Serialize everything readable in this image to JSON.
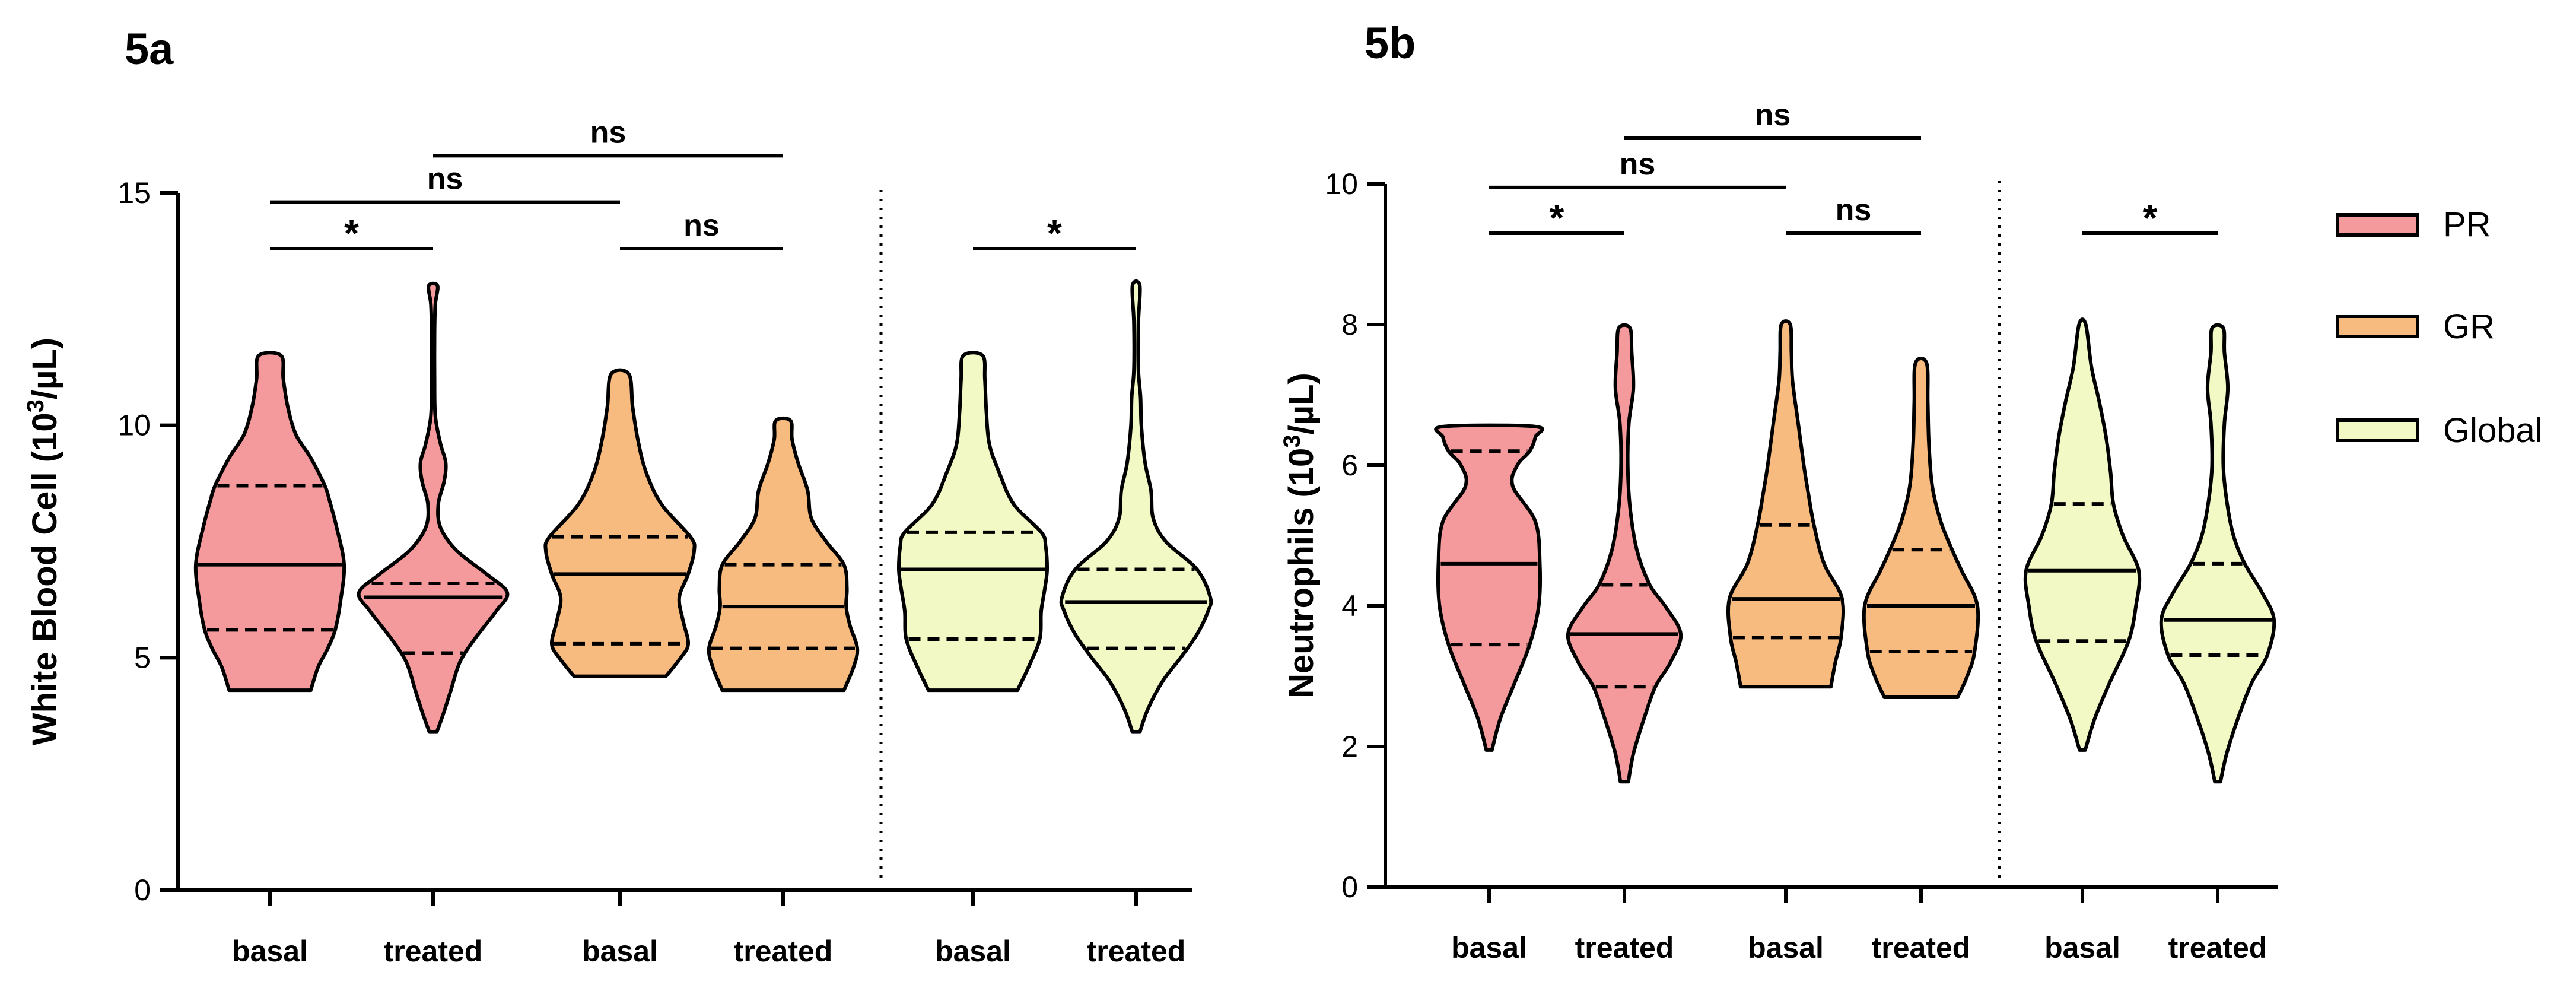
{
  "colors": {
    "PR": "#F59A9C",
    "GR": "#F8BB7F",
    "Global": "#F2F9C4",
    "ink": "#000000"
  },
  "legend": [
    {
      "label": "PR",
      "color": "#F59A9C"
    },
    {
      "label": "GR",
      "color": "#F8BB7F"
    },
    {
      "label": "Global",
      "color": "#F2F9C4"
    }
  ],
  "chart_data": [
    {
      "type": "violin",
      "panel_label": "5a",
      "title": "",
      "ylabel": "White Blood Cell  (10³/µL)",
      "ylabel_parts": {
        "main": "White Blood Cell  (10",
        "sup": "3",
        "tail": "/µL)"
      },
      "ylim": [
        0,
        15
      ],
      "yticks": [
        "0",
        "5",
        "10",
        "15"
      ],
      "ytick_values": [
        0,
        5,
        10,
        15
      ],
      "separator_after_group": 4,
      "violins": [
        {
          "name": "PR basal",
          "category": "basal",
          "group": "PR",
          "min": 4.3,
          "max": 11.5,
          "median": 7.0,
          "q1": 5.6,
          "q3": 8.7,
          "profile": [
            [
              4.3,
              0.55
            ],
            [
              4.8,
              0.65
            ],
            [
              5.2,
              0.78
            ],
            [
              5.6,
              0.88
            ],
            [
              6.2,
              0.95
            ],
            [
              7.0,
              1.0
            ],
            [
              7.8,
              0.9
            ],
            [
              8.4,
              0.8
            ],
            [
              8.7,
              0.74
            ],
            [
              9.3,
              0.55
            ],
            [
              9.8,
              0.35
            ],
            [
              10.4,
              0.24
            ],
            [
              11.0,
              0.18
            ],
            [
              11.5,
              0.15
            ]
          ]
        },
        {
          "name": "PR treated",
          "category": "treated",
          "group": "PR",
          "min": 3.4,
          "max": 13.0,
          "median": 6.3,
          "q1": 5.1,
          "q3": 6.6,
          "profile": [
            [
              3.4,
              0.05
            ],
            [
              3.8,
              0.14
            ],
            [
              4.3,
              0.24
            ],
            [
              4.9,
              0.36
            ],
            [
              5.4,
              0.56
            ],
            [
              6.0,
              0.85
            ],
            [
              6.4,
              1.0
            ],
            [
              6.8,
              0.72
            ],
            [
              7.3,
              0.32
            ],
            [
              7.8,
              0.1
            ],
            [
              8.3,
              0.07
            ],
            [
              8.8,
              0.15
            ],
            [
              9.2,
              0.17
            ],
            [
              9.6,
              0.1
            ],
            [
              10.2,
              0.03
            ],
            [
              11.0,
              0.02
            ],
            [
              12.0,
              0.02
            ],
            [
              12.6,
              0.03
            ],
            [
              13.0,
              0.06
            ]
          ]
        },
        {
          "name": "GR basal",
          "category": "basal",
          "group": "GR",
          "min": 4.6,
          "max": 11.1,
          "median": 6.8,
          "q1": 5.3,
          "q3": 7.6,
          "profile": [
            [
              4.6,
              0.62
            ],
            [
              5.0,
              0.82
            ],
            [
              5.3,
              0.92
            ],
            [
              5.8,
              0.85
            ],
            [
              6.3,
              0.8
            ],
            [
              6.8,
              0.92
            ],
            [
              7.3,
              1.0
            ],
            [
              7.6,
              0.95
            ],
            [
              8.3,
              0.56
            ],
            [
              9.0,
              0.35
            ],
            [
              9.7,
              0.24
            ],
            [
              10.4,
              0.17
            ],
            [
              11.1,
              0.12
            ]
          ]
        },
        {
          "name": "GR treated",
          "category": "treated",
          "group": "GR",
          "min": 4.3,
          "max": 10.1,
          "median": 6.1,
          "q1": 5.2,
          "q3": 7.0,
          "profile": [
            [
              4.3,
              0.82
            ],
            [
              4.8,
              0.95
            ],
            [
              5.2,
              1.0
            ],
            [
              5.7,
              0.9
            ],
            [
              6.1,
              0.85
            ],
            [
              6.5,
              0.86
            ],
            [
              7.0,
              0.82
            ],
            [
              7.5,
              0.58
            ],
            [
              8.0,
              0.38
            ],
            [
              8.6,
              0.33
            ],
            [
              9.2,
              0.2
            ],
            [
              9.7,
              0.12
            ],
            [
              10.1,
              0.1
            ]
          ]
        },
        {
          "name": "Global basal",
          "category": "basal",
          "group": "Global",
          "min": 4.3,
          "max": 11.5,
          "median": 6.9,
          "q1": 5.4,
          "q3": 7.7,
          "profile": [
            [
              4.3,
              0.6
            ],
            [
              4.8,
              0.75
            ],
            [
              5.4,
              0.9
            ],
            [
              6.0,
              0.92
            ],
            [
              6.5,
              0.97
            ],
            [
              6.9,
              1.0
            ],
            [
              7.4,
              0.98
            ],
            [
              7.7,
              0.92
            ],
            [
              8.3,
              0.55
            ],
            [
              9.0,
              0.35
            ],
            [
              9.6,
              0.22
            ],
            [
              10.3,
              0.18
            ],
            [
              11.0,
              0.16
            ],
            [
              11.5,
              0.13
            ]
          ]
        },
        {
          "name": "Global treated",
          "category": "treated",
          "group": "Global",
          "min": 3.4,
          "max": 13.0,
          "median": 6.2,
          "q1": 5.2,
          "q3": 6.9,
          "profile": [
            [
              3.4,
              0.05
            ],
            [
              3.9,
              0.16
            ],
            [
              4.5,
              0.36
            ],
            [
              5.0,
              0.6
            ],
            [
              5.5,
              0.82
            ],
            [
              6.0,
              0.97
            ],
            [
              6.3,
              1.0
            ],
            [
              6.9,
              0.82
            ],
            [
              7.5,
              0.4
            ],
            [
              8.0,
              0.23
            ],
            [
              8.6,
              0.2
            ],
            [
              9.2,
              0.12
            ],
            [
              10.0,
              0.07
            ],
            [
              10.6,
              0.06
            ],
            [
              11.2,
              0.03
            ],
            [
              12.2,
              0.03
            ],
            [
              13.0,
              0.05
            ]
          ]
        }
      ],
      "brackets": [
        {
          "from": 0,
          "to": 1,
          "label": "*",
          "level": 13.8
        },
        {
          "from": 0,
          "to": 2,
          "label": "ns",
          "level": 14.8
        },
        {
          "from": 2,
          "to": 3,
          "label": "ns",
          "level": 13.8
        },
        {
          "from": 1,
          "to": 3,
          "label": "ns",
          "level": 15.8
        },
        {
          "from": 4,
          "to": 5,
          "label": "*",
          "level": 13.8
        }
      ]
    },
    {
      "type": "violin",
      "panel_label": "5b",
      "title": "",
      "ylabel": "Neutrophils (10³/µL)",
      "ylabel_parts": {
        "main": "Neutrophils (10",
        "sup": "3",
        "tail": "/µL)"
      },
      "ylim": [
        0,
        10
      ],
      "yticks": [
        "0",
        "2",
        "4",
        "6",
        "8",
        "10"
      ],
      "ytick_values": [
        0,
        2,
        4,
        6,
        8,
        10
      ],
      "separator_after_group": 4,
      "violins": [
        {
          "name": "PR basal",
          "category": "basal",
          "group": "PR",
          "min": 1.95,
          "max": 6.55,
          "median": 4.6,
          "q1": 3.45,
          "q3": 6.2,
          "profile": [
            [
              1.95,
              0.05
            ],
            [
              2.4,
              0.2
            ],
            [
              2.9,
              0.45
            ],
            [
              3.45,
              0.72
            ],
            [
              4.0,
              0.88
            ],
            [
              4.6,
              0.9
            ],
            [
              5.2,
              0.82
            ],
            [
              5.7,
              0.42
            ],
            [
              6.0,
              0.5
            ],
            [
              6.2,
              0.72
            ],
            [
              6.4,
              0.82
            ],
            [
              6.55,
              0.82
            ]
          ]
        },
        {
          "name": "PR treated",
          "category": "treated",
          "group": "PR",
          "min": 1.5,
          "max": 7.95,
          "median": 3.6,
          "q1": 2.85,
          "q3": 4.3,
          "profile": [
            [
              1.5,
              0.07
            ],
            [
              1.9,
              0.16
            ],
            [
              2.4,
              0.35
            ],
            [
              2.85,
              0.55
            ],
            [
              3.2,
              0.82
            ],
            [
              3.6,
              1.0
            ],
            [
              4.0,
              0.72
            ],
            [
              4.3,
              0.45
            ],
            [
              4.8,
              0.22
            ],
            [
              5.4,
              0.1
            ],
            [
              6.0,
              0.06
            ],
            [
              6.6,
              0.08
            ],
            [
              7.1,
              0.16
            ],
            [
              7.6,
              0.13
            ],
            [
              7.95,
              0.1
            ]
          ]
        },
        {
          "name": "GR basal",
          "category": "basal",
          "group": "GR",
          "min": 2.85,
          "max": 8.0,
          "median": 4.1,
          "q1": 3.55,
          "q3": 5.15,
          "profile": [
            [
              2.85,
              0.8
            ],
            [
              3.2,
              0.88
            ],
            [
              3.55,
              0.98
            ],
            [
              4.1,
              1.0
            ],
            [
              4.6,
              0.68
            ],
            [
              5.15,
              0.5
            ],
            [
              5.6,
              0.4
            ],
            [
              6.0,
              0.32
            ],
            [
              6.6,
              0.22
            ],
            [
              7.2,
              0.12
            ],
            [
              7.6,
              0.1
            ],
            [
              8.0,
              0.08
            ]
          ]
        },
        {
          "name": "GR treated",
          "category": "treated",
          "group": "GR",
          "min": 2.7,
          "max": 7.45,
          "median": 4.0,
          "q1": 3.35,
          "q3": 4.8,
          "profile": [
            [
              2.7,
              0.65
            ],
            [
              3.0,
              0.82
            ],
            [
              3.35,
              0.95
            ],
            [
              4.0,
              1.0
            ],
            [
              4.5,
              0.72
            ],
            [
              4.8,
              0.55
            ],
            [
              5.2,
              0.35
            ],
            [
              5.7,
              0.2
            ],
            [
              6.3,
              0.14
            ],
            [
              6.9,
              0.12
            ],
            [
              7.45,
              0.1
            ]
          ]
        },
        {
          "name": "Global basal",
          "category": "basal",
          "group": "Global",
          "min": 1.95,
          "max": 8.0,
          "median": 4.5,
          "q1": 3.5,
          "q3": 5.45,
          "profile": [
            [
              1.95,
              0.05
            ],
            [
              2.4,
              0.22
            ],
            [
              2.9,
              0.48
            ],
            [
              3.5,
              0.82
            ],
            [
              4.0,
              0.95
            ],
            [
              4.5,
              1.0
            ],
            [
              5.0,
              0.72
            ],
            [
              5.45,
              0.55
            ],
            [
              5.9,
              0.5
            ],
            [
              6.4,
              0.42
            ],
            [
              6.9,
              0.3
            ],
            [
              7.4,
              0.16
            ],
            [
              8.0,
              0.06
            ]
          ]
        },
        {
          "name": "Global treated",
          "category": "treated",
          "group": "Global",
          "min": 1.5,
          "max": 7.95,
          "median": 3.8,
          "q1": 3.3,
          "q3": 4.6,
          "profile": [
            [
              1.5,
              0.05
            ],
            [
              1.9,
              0.16
            ],
            [
              2.4,
              0.36
            ],
            [
              2.9,
              0.6
            ],
            [
              3.3,
              0.88
            ],
            [
              3.8,
              1.0
            ],
            [
              4.2,
              0.78
            ],
            [
              4.6,
              0.48
            ],
            [
              5.0,
              0.28
            ],
            [
              5.5,
              0.16
            ],
            [
              6.0,
              0.1
            ],
            [
              6.6,
              0.12
            ],
            [
              7.1,
              0.18
            ],
            [
              7.6,
              0.12
            ],
            [
              7.95,
              0.1
            ]
          ]
        }
      ],
      "brackets": [
        {
          "from": 0,
          "to": 1,
          "label": "*",
          "level": 9.3
        },
        {
          "from": 0,
          "to": 2,
          "label": "ns",
          "level": 9.95
        },
        {
          "from": 2,
          "to": 3,
          "label": "ns",
          "level": 9.3
        },
        {
          "from": 1,
          "to": 3,
          "label": "ns",
          "level": 10.65
        },
        {
          "from": 4,
          "to": 5,
          "label": "*",
          "level": 9.3
        }
      ]
    }
  ]
}
